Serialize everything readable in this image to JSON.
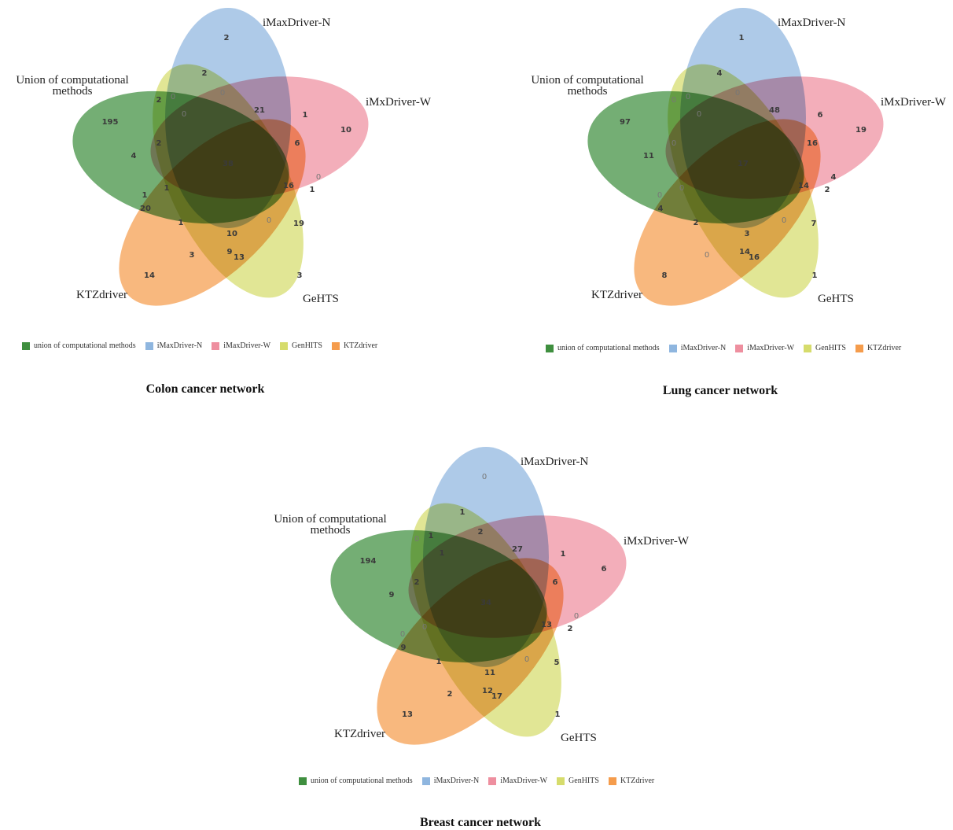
{
  "colors": {
    "union": "#3f8f3f",
    "imaxn": "#8fb6df",
    "imaxw": "#ee8f9f",
    "genhits": "#d6dc6c",
    "ktz": "#f59c4c"
  },
  "legend_labels": [
    "union of computational methods",
    "iMaxDriver-N",
    "iMaxDriver-W",
    "GenHITS",
    "KTZdriver"
  ],
  "panels": [
    {
      "caption": "Colon cancer network",
      "set_labels": {
        "union": [
          "Union of computational",
          "methods"
        ],
        "imaxn": [
          "iMaxDriver-N"
        ],
        "imaxw": [
          "iMxDriver-W"
        ],
        "genhits": [
          "GeHTS"
        ],
        "ktz": [
          "KTZdriver"
        ]
      },
      "counts": [
        "195",
        "2",
        "10",
        "3",
        "14",
        "2",
        "0",
        "2",
        "0",
        "0",
        "21",
        "1",
        "6",
        "38",
        "4",
        "2",
        "1",
        "16",
        "1",
        "0",
        "1",
        "20",
        "1",
        "0",
        "19",
        "10",
        "3",
        "9",
        "13"
      ]
    },
    {
      "caption": "Lung cancer network",
      "set_labels": {
        "union": [
          "Union of computational",
          "methods"
        ],
        "imaxn": [
          "iMaxDriver-N"
        ],
        "imaxw": [
          "iMxDriver-W"
        ],
        "genhits": [
          "GeHTS"
        ],
        "ktz": [
          "KTZdriver"
        ]
      },
      "counts": [
        "97",
        "1",
        "19",
        "1",
        "8",
        "0",
        "0",
        "4",
        "0",
        "0",
        "48",
        "6",
        "16",
        "17",
        "11",
        "0",
        "0",
        "14",
        "2",
        "4",
        "0",
        "4",
        "2",
        "0",
        "7",
        "3",
        "0",
        "14",
        "16"
      ]
    },
    {
      "caption": "Breast cancer network",
      "set_labels": {
        "union": [
          "Union of computational",
          "methods"
        ],
        "imaxn": [
          "iMaxDriver-N"
        ],
        "imaxw": [
          "iMxDriver-W"
        ],
        "genhits": [
          "GeHTS"
        ],
        "ktz": [
          "KTZdriver"
        ]
      },
      "counts": [
        "194",
        "0",
        "6",
        "1",
        "13",
        "0",
        "1",
        "1",
        "1",
        "2",
        "27",
        "1",
        "6",
        "34",
        "9",
        "2",
        "0",
        "13",
        "2",
        "0",
        "0",
        "9",
        "1",
        "0",
        "5",
        "11",
        "2",
        "12",
        "17"
      ]
    }
  ]
}
